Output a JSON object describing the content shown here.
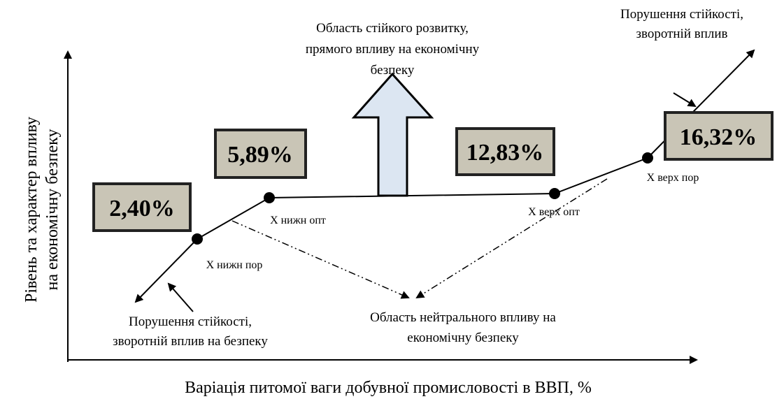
{
  "axes": {
    "y_label": [
      "Рівень та характер впливу",
      "на економічну безпеку"
    ],
    "x_label": "Варіація питомої ваги добувної промисловості в ВВП, %"
  },
  "thresholds": [
    {
      "value_label": "2,40%",
      "point_label": "Х нижн пор"
    },
    {
      "value_label": "5,89%",
      "point_label": "Х нижн опт"
    },
    {
      "value_label": "12,83%",
      "point_label": "Х верх опт"
    },
    {
      "value_label": "16,32%",
      "point_label": "Х верх пор"
    }
  ],
  "annotations": {
    "sustainable": [
      "Область стійкого розвитку,",
      "прямого впливу на економічну",
      "безпеку"
    ],
    "violation_upper": [
      "Порушення стійкості,",
      "зворотній вплив"
    ],
    "violation_lower": [
      "Порушення стійкості,",
      "зворотній вплив на безпеку"
    ],
    "neutral": [
      "Область нейтрального впливу на",
      "економічну безпеку"
    ]
  }
}
